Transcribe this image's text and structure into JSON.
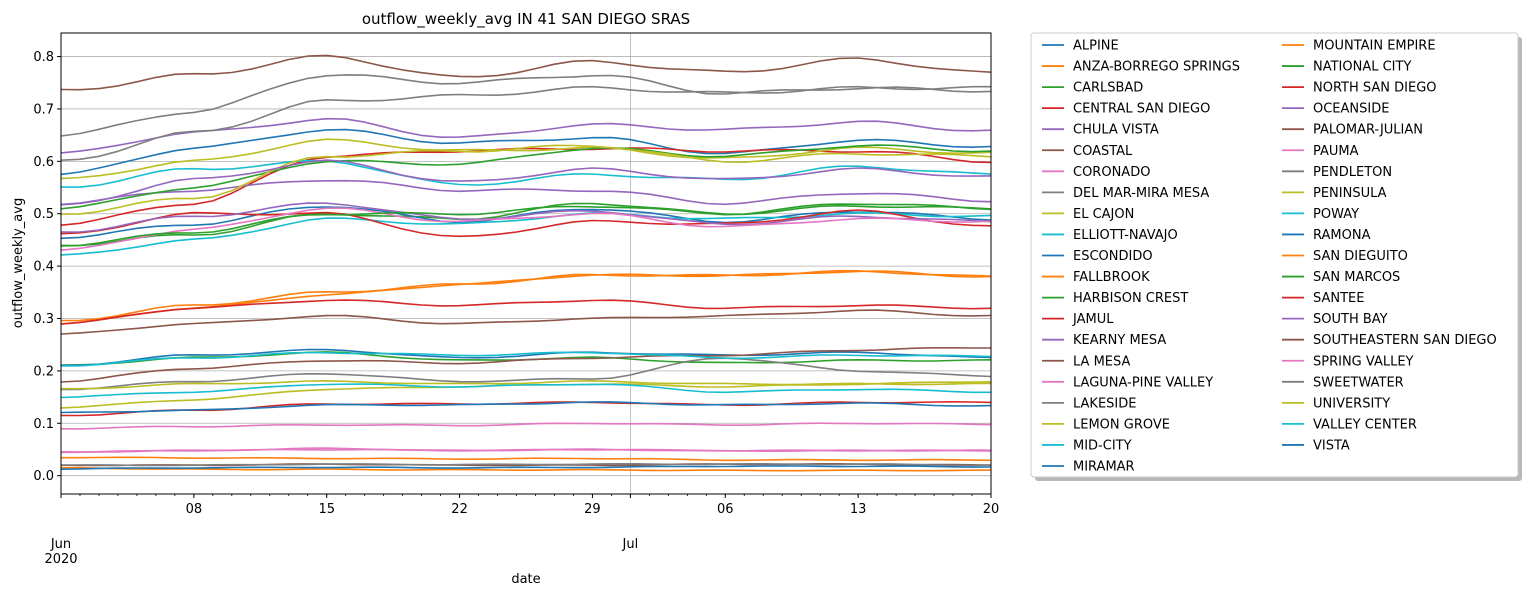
{
  "chart_data": {
    "type": "line",
    "title": "outflow_weekly_avg IN 41 SAN DIEGO SRAS",
    "xlabel": "date",
    "ylabel": "outflow_weekly_avg",
    "x_start": "2020-06-01",
    "x_end": "2020-07-20",
    "xlim": [
      "2020-06-01",
      "2020-07-20"
    ],
    "ylim": [
      -0.035,
      0.845
    ],
    "grid": true,
    "legend_position": "outside-right",
    "x_ticks": [
      {
        "date": "2020-06-01",
        "label": "Jun",
        "sub": "2020"
      },
      {
        "date": "2020-06-08",
        "label": "08",
        "sub": ""
      },
      {
        "date": "2020-06-15",
        "label": "15",
        "sub": ""
      },
      {
        "date": "2020-06-22",
        "label": "22",
        "sub": ""
      },
      {
        "date": "2020-06-29",
        "label": "29",
        "sub": ""
      },
      {
        "date": "2020-07-01",
        "label": "Jul",
        "sub": ""
      },
      {
        "date": "2020-07-06",
        "label": "06",
        "sub": ""
      },
      {
        "date": "2020-07-13",
        "label": "13",
        "sub": ""
      },
      {
        "date": "2020-07-20",
        "label": "20",
        "sub": ""
      }
    ],
    "y_ticks": [
      {
        "value": 0.0,
        "label": "0.0"
      },
      {
        "value": 0.1,
        "label": "0.1"
      },
      {
        "value": 0.2,
        "label": "0.2"
      },
      {
        "value": 0.3,
        "label": "0.3"
      },
      {
        "value": 0.4,
        "label": "0.4"
      },
      {
        "value": 0.5,
        "label": "0.5"
      },
      {
        "value": 0.6,
        "label": "0.6"
      },
      {
        "value": 0.7,
        "label": "0.7"
      },
      {
        "value": 0.8,
        "label": "0.8"
      }
    ],
    "x": [
      "2020-06-01",
      "2020-06-08",
      "2020-06-15",
      "2020-06-22",
      "2020-06-29",
      "2020-07-06",
      "2020-07-13",
      "2020-07-20"
    ],
    "series": [
      {
        "name": "ALPINE",
        "color": "#1f77b4",
        "values": [
          0.575,
          0.625,
          0.66,
          0.635,
          0.645,
          0.615,
          0.64,
          0.628
        ]
      },
      {
        "name": "ANZA-BORREGO SPRINGS",
        "color": "#ff7f0e",
        "values": [
          0.015,
          0.012,
          0.012,
          0.011,
          0.011,
          0.01,
          0.01,
          0.01
        ]
      },
      {
        "name": "CARLSBAD",
        "color": "#2ca02c",
        "values": [
          0.44,
          0.46,
          0.5,
          0.49,
          0.52,
          0.5,
          0.515,
          0.51
        ]
      },
      {
        "name": "CENTRAL SAN DIEGO",
        "color": "#d62728",
        "values": [
          0.48,
          0.52,
          0.61,
          0.62,
          0.625,
          0.62,
          0.62,
          0.6
        ]
      },
      {
        "name": "CHULA VISTA",
        "color": "#9467bd",
        "values": [
          0.615,
          0.655,
          0.68,
          0.645,
          0.67,
          0.66,
          0.675,
          0.658
        ]
      },
      {
        "name": "COASTAL",
        "color": "#8c564b",
        "values": [
          0.735,
          0.765,
          0.8,
          0.76,
          0.79,
          0.77,
          0.795,
          0.768
        ]
      },
      {
        "name": "CORONADO",
        "color": "#e377c2",
        "values": [
          0.09,
          0.094,
          0.097,
          0.096,
          0.1,
          0.097,
          0.1,
          0.098
        ]
      },
      {
        "name": "DEL MAR-MIRA MESA",
        "color": "#7f7f7f",
        "values": [
          0.65,
          0.695,
          0.765,
          0.75,
          0.765,
          0.73,
          0.74,
          0.735
        ]
      },
      {
        "name": "EL CAJON",
        "color": "#bcbd22",
        "values": [
          0.565,
          0.6,
          0.64,
          0.62,
          0.625,
          0.605,
          0.625,
          0.615
        ]
      },
      {
        "name": "ELLIOTT-NAVAJO",
        "color": "#17becf",
        "values": [
          0.55,
          0.585,
          0.6,
          0.555,
          0.575,
          0.565,
          0.59,
          0.575
        ]
      },
      {
        "name": "ESCONDIDO",
        "color": "#1f77b4",
        "values": [
          0.455,
          0.48,
          0.515,
          0.485,
          0.51,
          0.485,
          0.505,
          0.49
        ]
      },
      {
        "name": "FALLBROOK",
        "color": "#ff7f0e",
        "values": [
          0.29,
          0.32,
          0.345,
          0.365,
          0.383,
          0.382,
          0.39,
          0.38
        ]
      },
      {
        "name": "HARBISON CREST",
        "color": "#2ca02c",
        "values": [
          0.21,
          0.225,
          0.235,
          0.22,
          0.225,
          0.215,
          0.22,
          0.22
        ]
      },
      {
        "name": "JAMUL",
        "color": "#d62728",
        "values": [
          0.115,
          0.125,
          0.137,
          0.137,
          0.14,
          0.135,
          0.14,
          0.14
        ]
      },
      {
        "name": "KEARNY MESA",
        "color": "#9467bd",
        "values": [
          0.52,
          0.545,
          0.565,
          0.545,
          0.545,
          0.52,
          0.54,
          0.525
        ]
      },
      {
        "name": "LA MESA",
        "color": "#8c564b",
        "values": [
          0.27,
          0.29,
          0.305,
          0.29,
          0.3,
          0.305,
          0.315,
          0.305
        ]
      },
      {
        "name": "LAGUNA-PINE VALLEY",
        "color": "#e377c2",
        "values": [
          0.045,
          0.048,
          0.052,
          0.048,
          0.05,
          0.047,
          0.048,
          0.048
        ]
      },
      {
        "name": "LAKESIDE",
        "color": "#7f7f7f",
        "values": [
          0.165,
          0.18,
          0.195,
          0.18,
          0.185,
          0.225,
          0.2,
          0.19
        ]
      },
      {
        "name": "LEMON GROVE",
        "color": "#bcbd22",
        "values": [
          0.13,
          0.145,
          0.165,
          0.17,
          0.175,
          0.17,
          0.175,
          0.18
        ]
      },
      {
        "name": "MID-CITY",
        "color": "#17becf",
        "values": [
          0.42,
          0.45,
          0.49,
          0.48,
          0.5,
          0.49,
          0.5,
          0.495
        ]
      },
      {
        "name": "MIRAMAR",
        "color": "#1f77b4",
        "values": [
          0.21,
          0.23,
          0.24,
          0.225,
          0.235,
          0.23,
          0.235,
          0.225
        ]
      },
      {
        "name": "MOUNTAIN EMPIRE",
        "color": "#ff7f0e",
        "values": [
          0.035,
          0.034,
          0.033,
          0.032,
          0.033,
          0.03,
          0.03,
          0.03
        ]
      },
      {
        "name": "NATIONAL CITY",
        "color": "#2ca02c",
        "values": [
          0.51,
          0.55,
          0.6,
          0.595,
          0.625,
          0.61,
          0.63,
          0.62
        ]
      },
      {
        "name": "NORTH SAN DIEGO",
        "color": "#d62728",
        "values": [
          0.46,
          0.5,
          0.5,
          0.455,
          0.485,
          0.48,
          0.505,
          0.475
        ]
      },
      {
        "name": "OCEANSIDE",
        "color": "#9467bd",
        "values": [
          0.465,
          0.495,
          0.52,
          0.49,
          0.505,
          0.48,
          0.495,
          0.485
        ]
      },
      {
        "name": "PALOMAR-JULIAN",
        "color": "#8c564b",
        "values": [
          0.18,
          0.205,
          0.22,
          0.215,
          0.225,
          0.23,
          0.24,
          0.245
        ]
      },
      {
        "name": "PAUMA",
        "color": "#e377c2",
        "values": [
          0.43,
          0.47,
          0.51,
          0.485,
          0.5,
          0.475,
          0.49,
          0.485
        ]
      },
      {
        "name": "PENDLETON",
        "color": "#7f7f7f",
        "values": [
          0.6,
          0.655,
          0.715,
          0.725,
          0.74,
          0.73,
          0.74,
          0.74
        ]
      },
      {
        "name": "PENINSULA",
        "color": "#bcbd22",
        "values": [
          0.5,
          0.53,
          0.61,
          0.62,
          0.63,
          0.6,
          0.615,
          0.61
        ]
      },
      {
        "name": "POWAY",
        "color": "#17becf",
        "values": [
          0.15,
          0.16,
          0.175,
          0.17,
          0.175,
          0.16,
          0.165,
          0.16
        ]
      },
      {
        "name": "RAMONA",
        "color": "#1f77b4",
        "values": [
          0.12,
          0.125,
          0.135,
          0.135,
          0.14,
          0.135,
          0.138,
          0.133
        ]
      },
      {
        "name": "SAN DIEGUITO",
        "color": "#ff7f0e",
        "values": [
          0.295,
          0.325,
          0.35,
          0.365,
          0.383,
          0.382,
          0.39,
          0.38
        ]
      },
      {
        "name": "SAN MARCOS",
        "color": "#2ca02c",
        "values": [
          0.44,
          0.465,
          0.5,
          0.5,
          0.515,
          0.5,
          0.52,
          0.51
        ]
      },
      {
        "name": "SANTEE",
        "color": "#d62728",
        "values": [
          0.29,
          0.32,
          0.335,
          0.325,
          0.335,
          0.32,
          0.325,
          0.32
        ]
      },
      {
        "name": "SOUTH BAY",
        "color": "#9467bd",
        "values": [
          0.515,
          0.565,
          0.6,
          0.56,
          0.585,
          0.565,
          0.585,
          0.57
        ]
      },
      {
        "name": "SOUTHEASTERN SAN DIEGO",
        "color": "#8c564b",
        "values": [
          0.02,
          0.02,
          0.022,
          0.02,
          0.02,
          0.022,
          0.022,
          0.02
        ]
      },
      {
        "name": "SPRING VALLEY",
        "color": "#e377c2",
        "values": [
          0.045,
          0.048,
          0.05,
          0.048,
          0.05,
          0.048,
          0.048,
          0.048
        ]
      },
      {
        "name": "SWEETWATER",
        "color": "#7f7f7f",
        "values": [
          0.02,
          0.02,
          0.022,
          0.021,
          0.022,
          0.022,
          0.022,
          0.02
        ]
      },
      {
        "name": "UNIVERSITY",
        "color": "#bcbd22",
        "values": [
          0.165,
          0.175,
          0.18,
          0.175,
          0.18,
          0.175,
          0.175,
          0.175
        ]
      },
      {
        "name": "VALLEY CENTER",
        "color": "#17becf",
        "values": [
          0.21,
          0.225,
          0.235,
          0.23,
          0.235,
          0.225,
          0.23,
          0.228
        ]
      },
      {
        "name": "VISTA",
        "color": "#1f77b4",
        "values": [
          0.013,
          0.015,
          0.016,
          0.015,
          0.016,
          0.018,
          0.018,
          0.017
        ]
      }
    ]
  }
}
